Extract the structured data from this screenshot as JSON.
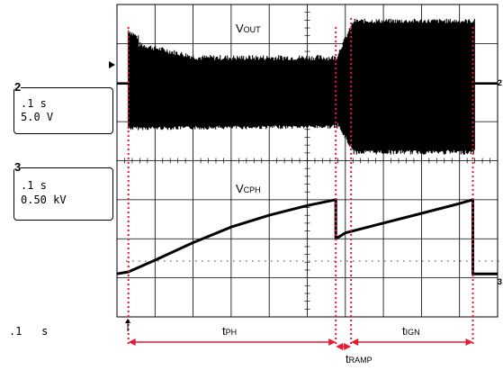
{
  "channel_boxes": [
    {
      "number": "2",
      "timebase": ".1 s",
      "scale": "5.0 V"
    },
    {
      "number": "3",
      "timebase": ".1 s",
      "scale": "0.50 kV"
    }
  ],
  "timebase_label": ".1   s",
  "trace_labels": {
    "vout_main": "V",
    "vout_sub": "OUT",
    "vcph_main": "V",
    "vcph_sub": "CPH"
  },
  "interval_labels": {
    "tph_main": "t",
    "tph_sub": "PH",
    "tramp_main": "t",
    "tramp_sub": "RAMP",
    "tign_main": "t",
    "tign_sub": "IGN"
  },
  "colors": {
    "trace": "#000000",
    "grid": "#000000",
    "marker": "#e8192c",
    "background": "#ffffff"
  },
  "chart_data": {
    "type": "line",
    "x_units": "div",
    "x_range": [
      0,
      10
    ],
    "grid": "10x8 divisions",
    "series": [
      {
        "name": "VOUT",
        "channel": "2",
        "segments": [
          {
            "x_start": 0,
            "x_end": 0.3,
            "level_div": 0.0,
            "ripple_div": 0.05
          },
          {
            "x_start": 0.3,
            "x_end": 5.8,
            "level_top_start_div": 1.0,
            "level_top_end_div": 0.6,
            "level_bottom_div": -1.1,
            "ripple": "dense"
          },
          {
            "x_start": 5.8,
            "x_end": 9.4,
            "level_top_div": 1.55,
            "level_bottom_div": -1.7,
            "ripple": "dense"
          },
          {
            "x_start": 9.4,
            "x_end": 10,
            "level_div": 0.0,
            "ripple_div": 0.05
          }
        ]
      },
      {
        "name": "VCPH",
        "channel": "3",
        "points": [
          [
            0,
            -0.95
          ],
          [
            0.3,
            -0.9
          ],
          [
            1,
            -0.6
          ],
          [
            2,
            -0.15
          ],
          [
            3,
            0.25
          ],
          [
            4,
            0.55
          ],
          [
            5,
            0.8
          ],
          [
            5.75,
            0.95
          ],
          [
            5.75,
            -0.05
          ],
          [
            6,
            0.1
          ],
          [
            7,
            0.35
          ],
          [
            8,
            0.6
          ],
          [
            9,
            0.85
          ],
          [
            9.35,
            0.95
          ],
          [
            9.35,
            -0.95
          ],
          [
            10,
            -0.95
          ]
        ]
      }
    ],
    "markers_x_div": [
      0.3,
      5.75,
      6.15,
      9.35
    ],
    "intervals": [
      {
        "label": "tPH",
        "from": 0.3,
        "to": 5.75
      },
      {
        "label": "tRAMP",
        "from": 5.75,
        "to": 6.15
      },
      {
        "label": "tIGN",
        "from": 6.15,
        "to": 9.35
      }
    ]
  }
}
